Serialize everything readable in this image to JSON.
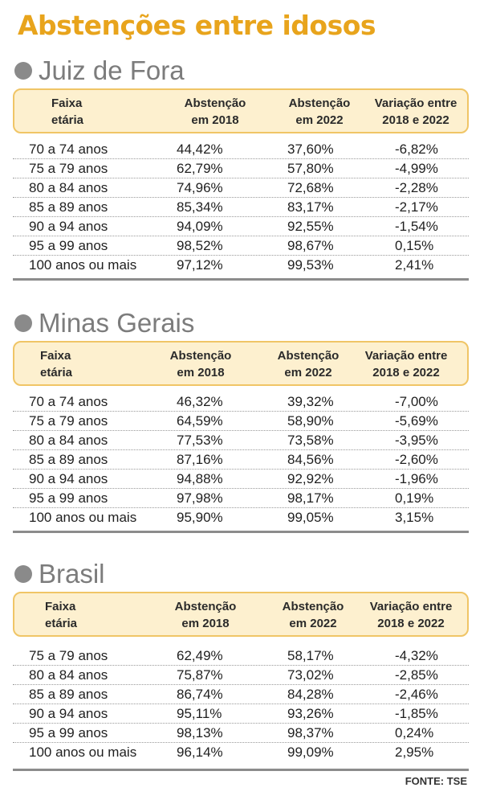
{
  "title": "Abstenções entre idosos",
  "columns": {
    "faixa": [
      "Faixa",
      "etária"
    ],
    "abst2018": [
      "Abstenção",
      "em 2018"
    ],
    "abst2022": [
      "Abstenção",
      "em 2022"
    ],
    "variacao": [
      "Variação entre",
      "2018 e 2022"
    ]
  },
  "sections": [
    {
      "name": "Juiz de Fora",
      "rows": [
        [
          "70 a 74 anos",
          "44,42%",
          "37,60%",
          "-6,82%"
        ],
        [
          "75 a 79 anos",
          "62,79%",
          "57,80%",
          "-4,99%"
        ],
        [
          "80 a 84 anos",
          "74,96%",
          "72,68%",
          "-2,28%"
        ],
        [
          "85 a 89 anos",
          "85,34%",
          "83,17%",
          "-2,17%"
        ],
        [
          "90 a 94 anos",
          "94,09%",
          "92,55%",
          "-1,54%"
        ],
        [
          "95 a 99 anos",
          "98,52%",
          "98,67%",
          "0,15%"
        ],
        [
          "100 anos ou mais",
          "97,12%",
          "99,53%",
          "2,41%"
        ]
      ]
    },
    {
      "name": "Minas Gerais",
      "rows": [
        [
          "70 a 74 anos",
          "46,32%",
          "39,32%",
          "-7,00%"
        ],
        [
          "75 a 79 anos",
          "64,59%",
          "58,90%",
          "-5,69%"
        ],
        [
          "80 a 84 anos",
          "77,53%",
          "73,58%",
          "-3,95%"
        ],
        [
          "85 a 89 anos",
          "87,16%",
          "84,56%",
          "-2,60%"
        ],
        [
          "90 a 94 anos",
          "94,88%",
          "92,92%",
          "-1,96%"
        ],
        [
          "95 a 99 anos",
          "97,98%",
          "98,17%",
          "0,19%"
        ],
        [
          "100 anos ou mais",
          "95,90%",
          "99,05%",
          "3,15%"
        ]
      ]
    },
    {
      "name": "Brasil",
      "rows": [
        [
          "75 a 79 anos",
          "62,49%",
          "58,17%",
          "-4,32%"
        ],
        [
          "80 a 84 anos",
          "75,87%",
          "73,02%",
          "-2,85%"
        ],
        [
          "85 a 89 anos",
          "86,74%",
          "84,28%",
          "-2,46%"
        ],
        [
          "90 a 94 anos",
          "95,11%",
          "93,26%",
          "-1,85%"
        ],
        [
          "95 a 99 anos",
          "98,13%",
          "98,37%",
          "0,24%"
        ],
        [
          "100 anos ou mais",
          "96,14%",
          "99,09%",
          "2,95%"
        ]
      ]
    }
  ],
  "source": "FONTE: TSE",
  "colors": {
    "title": "#e8a41c",
    "header_fill": "#fdf0cf",
    "header_border": "#f0c566",
    "section_title": "#7c7c7c",
    "bullet": "#8a8a8a"
  }
}
